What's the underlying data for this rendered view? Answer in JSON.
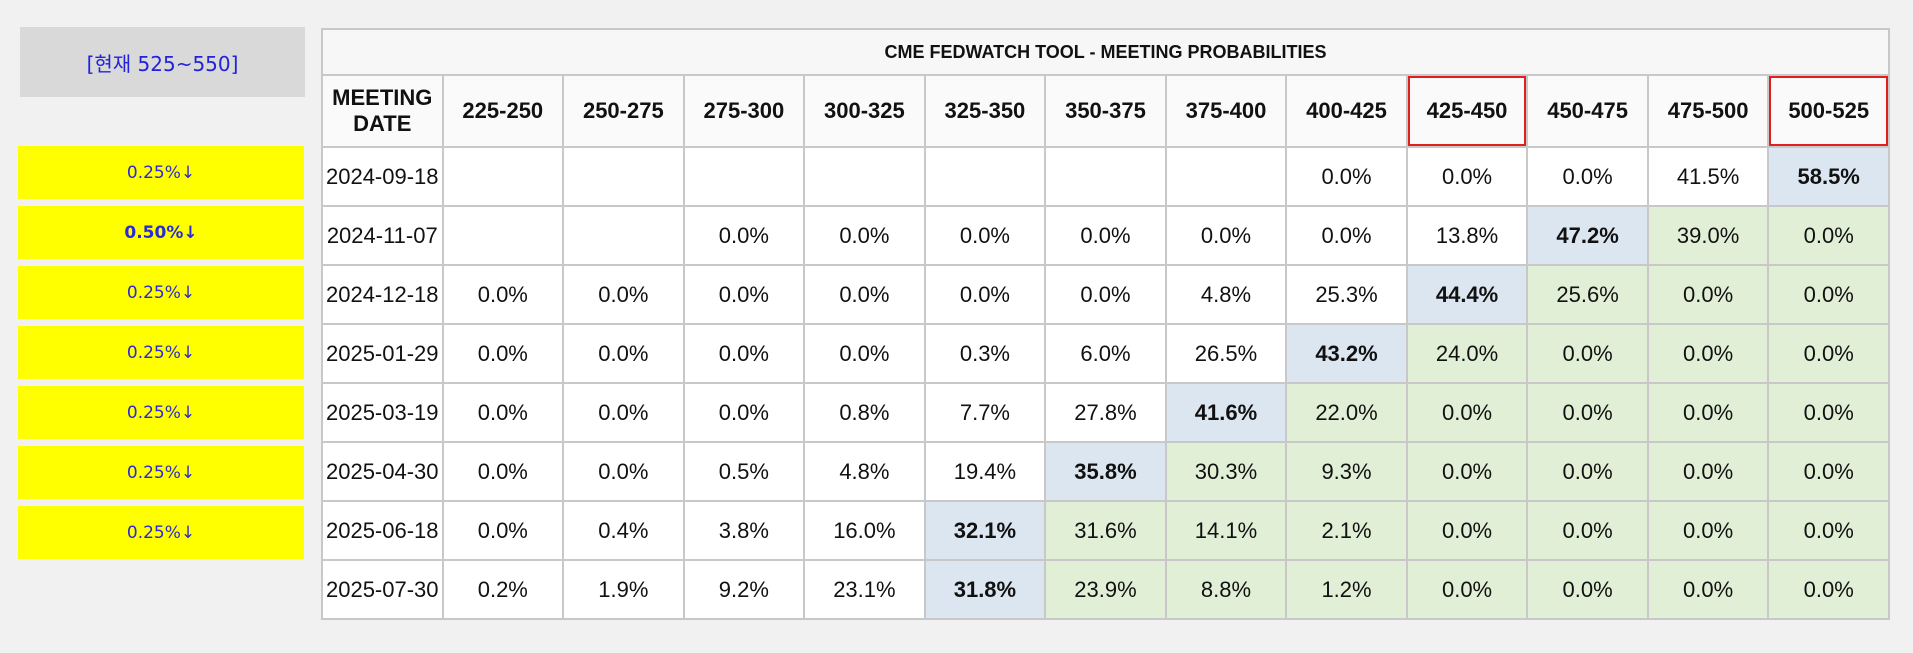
{
  "current": "[현재 525~550]",
  "side_items": [
    {
      "label": "0.25%↓",
      "bold": false
    },
    {
      "label": "0.50%↓",
      "bold": true
    },
    {
      "label": "0.25%↓",
      "bold": false
    },
    {
      "label": "0.25%↓",
      "bold": false
    },
    {
      "label": "0.25%↓",
      "bold": false
    },
    {
      "label": "0.25%↓",
      "bold": false
    },
    {
      "label": "0.25%↓",
      "bold": false
    }
  ],
  "table": {
    "title": "CME FEDWATCH TOOL - MEETING PROBABILITIES",
    "date_header": "MEETING DATE",
    "ranges": [
      "225-250",
      "250-275",
      "275-300",
      "300-325",
      "325-350",
      "350-375",
      "375-400",
      "400-425",
      "425-450",
      "450-475",
      "475-500",
      "500-525"
    ],
    "boxed_ranges": [
      8,
      11
    ],
    "highlight_color": "#dce6f0",
    "green_color": "#e0efd6",
    "rows": [
      {
        "date": "2024-09-18",
        "cells": [
          "",
          "",
          "",
          "",
          "",
          "",
          "",
          "0.0%",
          "0.0%",
          "0.0%",
          "41.5%",
          "58.5%"
        ],
        "max": 11
      },
      {
        "date": "2024-11-07",
        "cells": [
          "",
          "",
          "0.0%",
          "0.0%",
          "0.0%",
          "0.0%",
          "0.0%",
          "0.0%",
          "13.8%",
          "47.2%",
          "39.0%",
          "0.0%"
        ],
        "max": 9
      },
      {
        "date": "2024-12-18",
        "cells": [
          "0.0%",
          "0.0%",
          "0.0%",
          "0.0%",
          "0.0%",
          "0.0%",
          "4.8%",
          "25.3%",
          "44.4%",
          "25.6%",
          "0.0%",
          "0.0%"
        ],
        "max": 8
      },
      {
        "date": "2025-01-29",
        "cells": [
          "0.0%",
          "0.0%",
          "0.0%",
          "0.0%",
          "0.3%",
          "6.0%",
          "26.5%",
          "43.2%",
          "24.0%",
          "0.0%",
          "0.0%",
          "0.0%"
        ],
        "max": 7
      },
      {
        "date": "2025-03-19",
        "cells": [
          "0.0%",
          "0.0%",
          "0.0%",
          "0.8%",
          "7.7%",
          "27.8%",
          "41.6%",
          "22.0%",
          "0.0%",
          "0.0%",
          "0.0%",
          "0.0%"
        ],
        "max": 6
      },
      {
        "date": "2025-04-30",
        "cells": [
          "0.0%",
          "0.0%",
          "0.5%",
          "4.8%",
          "19.4%",
          "35.8%",
          "30.3%",
          "9.3%",
          "0.0%",
          "0.0%",
          "0.0%",
          "0.0%"
        ],
        "max": 5
      },
      {
        "date": "2025-06-18",
        "cells": [
          "0.0%",
          "0.4%",
          "3.8%",
          "16.0%",
          "32.1%",
          "31.6%",
          "14.1%",
          "2.1%",
          "0.0%",
          "0.0%",
          "0.0%",
          "0.0%"
        ],
        "max": 4
      },
      {
        "date": "2025-07-30",
        "cells": [
          "0.2%",
          "1.9%",
          "9.2%",
          "23.1%",
          "31.8%",
          "23.9%",
          "8.8%",
          "1.2%",
          "0.0%",
          "0.0%",
          "0.0%",
          "0.0%"
        ],
        "max": 4
      }
    ]
  }
}
